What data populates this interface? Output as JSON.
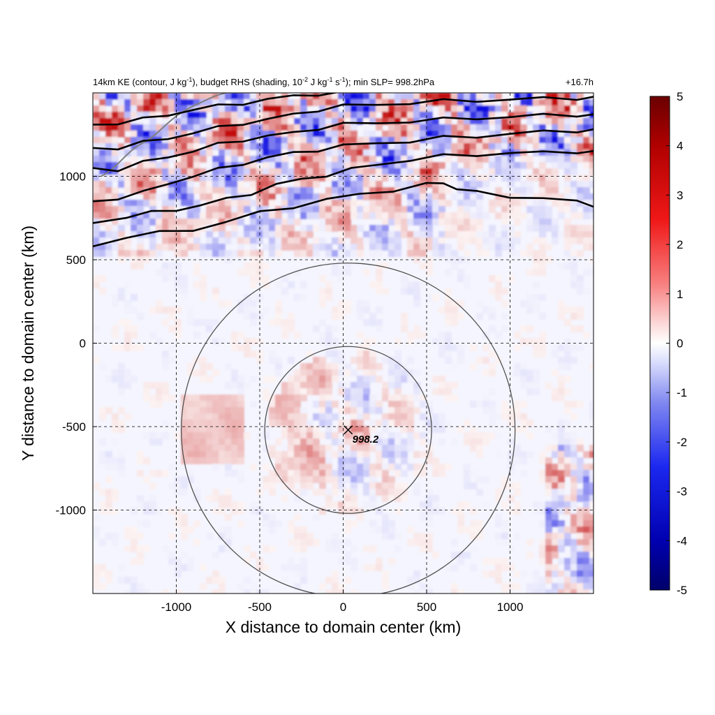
{
  "chart_data": {
    "type": "heatmap",
    "title_parts": {
      "p1": "14km KE (contour, J kg",
      "p1_sup": "-1",
      "p2": "), budget RHS (shading, 10",
      "p2_sup": "-2",
      "p3": " J kg",
      "p3_sup": "-1",
      "p4": " s",
      "p4_sup": "-1",
      "p5": "); min SLP= 998.2hPa"
    },
    "time_label": "+16.7h",
    "xlabel": "X distance to domain center (km)",
    "ylabel": "Y distance to domain center (km)",
    "xlim": [
      -1500,
      1500
    ],
    "ylim": [
      -1500,
      1500
    ],
    "x_ticks": [
      -1000,
      -500,
      0,
      500,
      1000
    ],
    "y_ticks": [
      1000,
      500,
      0,
      -500,
      -1000
    ],
    "x_tick_labels": [
      "-1000",
      "-500",
      "0",
      "500",
      "1000"
    ],
    "y_tick_labels": [
      "1000",
      "500",
      "0",
      "-500",
      "-1000"
    ],
    "grid": "dashed",
    "colorbar": {
      "min": -5,
      "max": 5,
      "ticks": [
        5,
        4,
        3,
        2,
        1,
        0,
        -1,
        -2,
        -3,
        -4,
        -5
      ],
      "tick_labels": [
        "5",
        "4",
        "3",
        "2",
        "1",
        "0",
        "-1",
        "-2",
        "-3",
        "-4",
        "-5"
      ]
    },
    "center_marker": {
      "x": 30,
      "y": -520,
      "label": "998.2"
    },
    "range_circles_km": [
      500,
      1000
    ],
    "ke_contours": [
      {
        "name": "c1",
        "points": [
          [
            -1500,
            580
          ],
          [
            -1300,
            640
          ],
          [
            -1100,
            660
          ],
          [
            -900,
            680
          ],
          [
            -700,
            730
          ],
          [
            -500,
            780
          ],
          [
            -300,
            820
          ],
          [
            -100,
            860
          ],
          [
            100,
            890
          ],
          [
            300,
            920
          ],
          [
            500,
            950
          ],
          [
            600,
            960
          ],
          [
            680,
            930
          ],
          [
            800,
            900
          ],
          [
            1000,
            880
          ],
          [
            1200,
            870
          ],
          [
            1400,
            845
          ],
          [
            1500,
            830
          ]
        ]
      },
      {
        "name": "c2",
        "points": [
          [
            -1500,
            720
          ],
          [
            -1300,
            760
          ],
          [
            -1150,
            780
          ],
          [
            -1000,
            800
          ],
          [
            -850,
            830
          ],
          [
            -700,
            860
          ],
          [
            -550,
            900
          ],
          [
            -400,
            950
          ],
          [
            -250,
            980
          ],
          [
            -100,
            1010
          ],
          [
            50,
            1040
          ],
          [
            200,
            1070
          ],
          [
            400,
            1100
          ],
          [
            600,
            1120
          ],
          [
            800,
            1130
          ],
          [
            1000,
            1140
          ],
          [
            1200,
            1140
          ],
          [
            1400,
            1150
          ],
          [
            1500,
            1145
          ]
        ]
      },
      {
        "name": "c3",
        "points": [
          [
            -1500,
            850
          ],
          [
            -1350,
            870
          ],
          [
            -1200,
            900
          ],
          [
            -1050,
            960
          ],
          [
            -900,
            1000
          ],
          [
            -750,
            1040
          ],
          [
            -600,
            1080
          ],
          [
            -450,
            1110
          ],
          [
            -300,
            1140
          ],
          [
            -150,
            1160
          ],
          [
            0,
            1180
          ],
          [
            200,
            1200
          ],
          [
            400,
            1210
          ],
          [
            600,
            1230
          ],
          [
            800,
            1240
          ],
          [
            1000,
            1255
          ],
          [
            1200,
            1265
          ],
          [
            1400,
            1275
          ],
          [
            1500,
            1275
          ]
        ]
      },
      {
        "name": "c4",
        "points": [
          [
            -1500,
            1050
          ],
          [
            -1350,
            1040
          ],
          [
            -1200,
            1080
          ],
          [
            -1050,
            1120
          ],
          [
            -900,
            1150
          ],
          [
            -750,
            1190
          ],
          [
            -600,
            1220
          ],
          [
            -450,
            1240
          ],
          [
            -300,
            1260
          ],
          [
            -150,
            1290
          ],
          [
            0,
            1310
          ],
          [
            200,
            1320
          ],
          [
            400,
            1330
          ],
          [
            600,
            1340
          ],
          [
            800,
            1350
          ],
          [
            1000,
            1355
          ],
          [
            1200,
            1365
          ],
          [
            1400,
            1370
          ],
          [
            1500,
            1365
          ]
        ]
      },
      {
        "name": "c5",
        "points": [
          [
            -1500,
            1170
          ],
          [
            -1350,
            1170
          ],
          [
            -1200,
            1200
          ],
          [
            -1050,
            1230
          ],
          [
            -900,
            1260
          ],
          [
            -750,
            1290
          ],
          [
            -600,
            1320
          ],
          [
            -450,
            1340
          ],
          [
            -300,
            1370
          ],
          [
            -150,
            1400
          ],
          [
            0,
            1420
          ],
          [
            200,
            1430
          ],
          [
            400,
            1440
          ],
          [
            600,
            1450
          ],
          [
            800,
            1455
          ],
          [
            1000,
            1460
          ],
          [
            1200,
            1465
          ],
          [
            1400,
            1470
          ],
          [
            1500,
            1470
          ]
        ]
      },
      {
        "name": "c6",
        "points": [
          [
            -1500,
            1310
          ],
          [
            -1350,
            1320
          ],
          [
            -1200,
            1340
          ],
          [
            -1050,
            1370
          ],
          [
            -900,
            1400
          ],
          [
            -750,
            1420
          ],
          [
            -600,
            1440
          ],
          [
            -450,
            1460
          ],
          [
            -300,
            1480
          ],
          [
            -150,
            1495
          ],
          [
            0,
            1500
          ]
        ]
      }
    ],
    "colors": {
      "positive": "#d40000",
      "negative": "#0020e0",
      "circle": "#505050",
      "contour": "#000000",
      "coast": "#808080"
    }
  }
}
